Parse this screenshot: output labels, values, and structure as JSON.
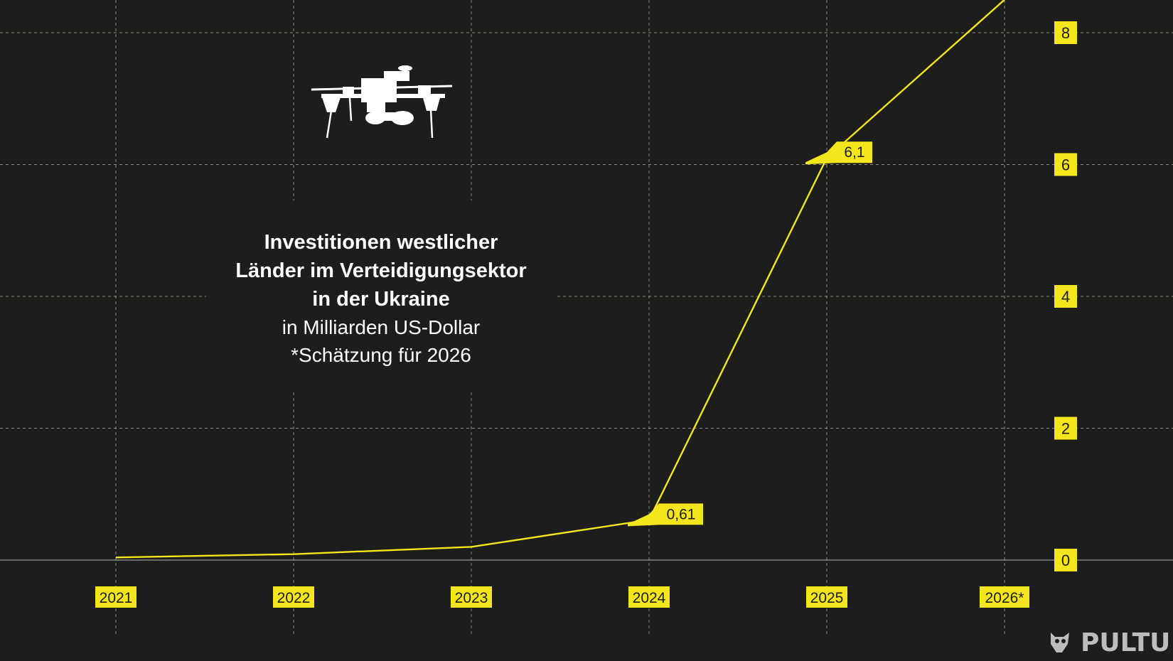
{
  "title": {
    "line1": "Investitionen westlicher",
    "line2": "Länder im Verteidigungsektor",
    "line3": "in der Ukraine",
    "unit": "in Milliarden US-Dollar",
    "note": "*Schätzung für 2026"
  },
  "logo": {
    "text": "PULTU"
  },
  "icons": {
    "drone": "drone-icon",
    "logo_mark": "owl-icon"
  },
  "colors": {
    "background": "#1d1d1b",
    "accent": "#f3e61c",
    "grid": "#8a8a86",
    "text": "#ffffff"
  },
  "chart_data": {
    "type": "line",
    "categories": [
      "2021",
      "2022",
      "2023",
      "2024",
      "2025",
      "2026*"
    ],
    "series": [
      {
        "values": [
          0.04,
          0.09,
          0.2,
          0.61,
          6.1,
          8.5
        ]
      }
    ],
    "data_labels": [
      {
        "category": "2024",
        "text": "0,61"
      },
      {
        "category": "2025",
        "text": "6,1"
      }
    ],
    "y_ticks": [
      "0",
      "2",
      "4",
      "6",
      "8"
    ],
    "ylim": [
      0,
      8.5
    ],
    "xlabel": "",
    "ylabel": "",
    "grid": true
  }
}
